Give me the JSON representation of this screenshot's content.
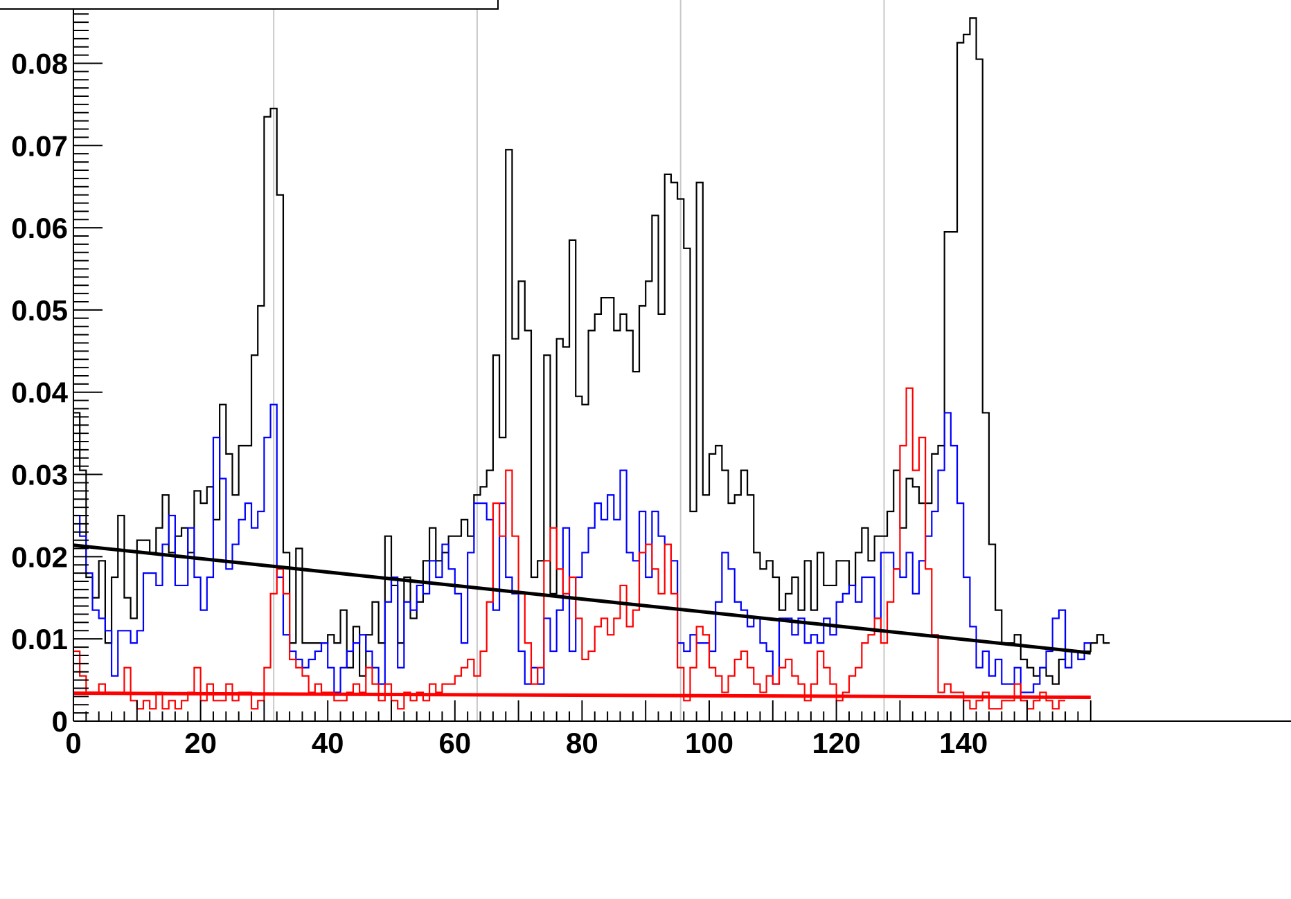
{
  "chart_data": {
    "type": "line",
    "xlim": [
      0,
      160
    ],
    "ylim": [
      0,
      0.0877
    ],
    "grid": {
      "vertical": true,
      "horizontal": false
    },
    "grid_lines_x": [
      31.5,
      63.5,
      95.5,
      127.5
    ],
    "x_ticks": [
      0,
      20,
      40,
      60,
      80,
      100,
      120,
      140
    ],
    "x_tick_labels": [
      "0",
      "20",
      "40",
      "60",
      "80",
      "100",
      "120",
      "140"
    ],
    "y_ticks": [
      0,
      0.01,
      0.02,
      0.03,
      0.04,
      0.05,
      0.06,
      0.07,
      0.08
    ],
    "y_tick_labels": [
      "0",
      "0.01",
      "0.02",
      "0.03",
      "0.04",
      "0.05",
      "0.06",
      "0.07",
      "0.08"
    ],
    "colors": {
      "black": "#000000",
      "blue": "#0000ff",
      "red": "#ff0000",
      "grid": "#c8c8c8"
    },
    "series": [
      {
        "style": "step",
        "color": "#000000",
        "values": [
          0.0375,
          0.0305,
          0.0175,
          0.015,
          0.0195,
          0.0095,
          0.0175,
          0.025,
          0.015,
          0.0125,
          0.022,
          0.022,
          0.0205,
          0.0235,
          0.0275,
          0.0205,
          0.0225,
          0.0235,
          0.0205,
          0.028,
          0.0265,
          0.0285,
          0.0245,
          0.0385,
          0.0325,
          0.0275,
          0.0335,
          0.0335,
          0.0445,
          0.0505,
          0.0735,
          0.0745,
          0.064,
          0.0205,
          0.0095,
          0.021,
          0.0095,
          0.0095,
          0.0095,
          0.0095,
          0.0105,
          0.0095,
          0.0135,
          0.0065,
          0.0115,
          0.0055,
          0.0105,
          0.0145,
          0.0095,
          0.0225,
          0.0165,
          0.0095,
          0.0175,
          0.0125,
          0.0145,
          0.0195,
          0.0235,
          0.0195,
          0.0205,
          0.0225,
          0.0225,
          0.0245,
          0.0225,
          0.0275,
          0.0285,
          0.0305,
          0.0445,
          0.0345,
          0.0695,
          0.0465,
          0.0535,
          0.0475,
          0.0175,
          0.0195,
          0.0445,
          0.0155,
          0.0465,
          0.0455,
          0.0585,
          0.0395,
          0.0385,
          0.0475,
          0.0495,
          0.0515,
          0.0515,
          0.0475,
          0.0495,
          0.0475,
          0.0425,
          0.0505,
          0.0535,
          0.0615,
          0.0495,
          0.0665,
          0.0655,
          0.0635,
          0.0575,
          0.0255,
          0.0655,
          0.0275,
          0.0325,
          0.0335,
          0.0305,
          0.0265,
          0.0275,
          0.0305,
          0.0275,
          0.0205,
          0.0185,
          0.0195,
          0.0175,
          0.0135,
          0.0155,
          0.0175,
          0.0135,
          0.0195,
          0.0135,
          0.0205,
          0.0165,
          0.0165,
          0.0195,
          0.0195,
          0.0165,
          0.0205,
          0.0235,
          0.0195,
          0.0225,
          0.0225,
          0.0255,
          0.0305,
          0.0235,
          0.0295,
          0.0285,
          0.0265,
          0.0265,
          0.0325,
          0.0335,
          0.0595,
          0.0595,
          0.0825,
          0.0835,
          0.0855,
          0.0805,
          0.0375,
          0.0215,
          0.0135,
          0.0095,
          0.0095,
          0.0105,
          0.0075,
          0.0065,
          0.0055,
          0.0065,
          0.0055,
          0.0045,
          0.0075,
          0.0085,
          0.0085,
          0.0075,
          0.0085,
          0.0095,
          0.0105,
          0.0095
        ]
      },
      {
        "style": "step",
        "color": "#0000ff",
        "values": [
          0.025,
          0.0225,
          0.018,
          0.0135,
          0.0125,
          0.011,
          0.0055,
          0.011,
          0.011,
          0.0095,
          0.011,
          0.018,
          0.018,
          0.0165,
          0.0215,
          0.025,
          0.0165,
          0.0165,
          0.0235,
          0.0175,
          0.0135,
          0.0175,
          0.0345,
          0.0295,
          0.0185,
          0.0215,
          0.0245,
          0.0265,
          0.0235,
          0.0255,
          0.0345,
          0.0385,
          0.0175,
          0.0105,
          0.0085,
          0.0075,
          0.0065,
          0.0075,
          0.0085,
          0.0095,
          0.0065,
          0.0035,
          0.0065,
          0.0085,
          0.0095,
          0.0105,
          0.0085,
          0.0065,
          0.0045,
          0.0145,
          0.0175,
          0.0065,
          0.0145,
          0.0135,
          0.0165,
          0.0155,
          0.0195,
          0.0175,
          0.0215,
          0.0185,
          0.0155,
          0.0095,
          0.0205,
          0.0265,
          0.0265,
          0.0245,
          0.0135,
          0.0265,
          0.0175,
          0.0155,
          0.0085,
          0.0045,
          0.0065,
          0.0045,
          0.0125,
          0.0085,
          0.0135,
          0.0235,
          0.0085,
          0.0175,
          0.0205,
          0.0235,
          0.0265,
          0.0245,
          0.0275,
          0.0245,
          0.0305,
          0.0205,
          0.0195,
          0.0255,
          0.0175,
          0.0255,
          0.0225,
          0.0215,
          0.0195,
          0.0095,
          0.0085,
          0.0105,
          0.0095,
          0.0095,
          0.0085,
          0.0145,
          0.0205,
          0.0185,
          0.0145,
          0.0135,
          0.0115,
          0.0125,
          0.0095,
          0.0085,
          0.0045,
          0.0125,
          0.0125,
          0.0105,
          0.0125,
          0.0095,
          0.0105,
          0.0095,
          0.0125,
          0.0105,
          0.0145,
          0.0155,
          0.0165,
          0.0145,
          0.0175,
          0.0175,
          0.0125,
          0.0205,
          0.0205,
          0.0185,
          0.0175,
          0.0205,
          0.0155,
          0.0195,
          0.0225,
          0.0255,
          0.0305,
          0.0375,
          0.0335,
          0.0265,
          0.0175,
          0.0115,
          0.0065,
          0.0085,
          0.0055,
          0.0075,
          0.0045,
          0.0045,
          0.0065,
          0.0035,
          0.0035,
          0.0045,
          0.0065,
          0.0085,
          0.0125,
          0.0135,
          0.0065,
          0.0085,
          0.0075,
          0.0095
        ]
      },
      {
        "style": "step",
        "color": "#ff0000",
        "values": [
          0.0085,
          0.0055,
          0.0035,
          0.0035,
          0.0045,
          0.0035,
          0.0035,
          0.0035,
          0.0065,
          0.0025,
          0.0015,
          0.0025,
          0.0015,
          0.0035,
          0.0015,
          0.0025,
          0.0015,
          0.0025,
          0.0035,
          0.0065,
          0.0025,
          0.0045,
          0.0025,
          0.0025,
          0.0045,
          0.0025,
          0.0035,
          0.0035,
          0.0015,
          0.0025,
          0.0065,
          0.0155,
          0.0185,
          0.0155,
          0.0075,
          0.0065,
          0.0055,
          0.0035,
          0.0045,
          0.0035,
          0.0035,
          0.0025,
          0.0025,
          0.0035,
          0.0045,
          0.0035,
          0.0065,
          0.0045,
          0.0025,
          0.0045,
          0.0025,
          0.0015,
          0.0035,
          0.0025,
          0.0035,
          0.0025,
          0.0045,
          0.0035,
          0.0045,
          0.0045,
          0.0055,
          0.0065,
          0.0075,
          0.0055,
          0.0085,
          0.0145,
          0.0265,
          0.0225,
          0.0305,
          0.0225,
          0.0155,
          0.0095,
          0.0045,
          0.0065,
          0.0195,
          0.0235,
          0.0185,
          0.0155,
          0.0175,
          0.0125,
          0.0075,
          0.0085,
          0.0115,
          0.0125,
          0.0105,
          0.0125,
          0.0165,
          0.0115,
          0.0135,
          0.0205,
          0.0215,
          0.0185,
          0.0155,
          0.0215,
          0.0155,
          0.0065,
          0.0025,
          0.0065,
          0.0115,
          0.0105,
          0.0065,
          0.0055,
          0.0035,
          0.0055,
          0.0075,
          0.0085,
          0.0065,
          0.0045,
          0.0035,
          0.0055,
          0.0045,
          0.0065,
          0.0075,
          0.0055,
          0.0045,
          0.0025,
          0.0045,
          0.0085,
          0.0065,
          0.0045,
          0.0025,
          0.0035,
          0.0055,
          0.0065,
          0.0095,
          0.0105,
          0.0125,
          0.0095,
          0.0145,
          0.0185,
          0.0335,
          0.0405,
          0.0305,
          0.0345,
          0.0185,
          0.0105,
          0.0035,
          0.0045,
          0.0035,
          0.0035,
          0.0025,
          0.0015,
          0.0025,
          0.0035,
          0.0015,
          0.0015,
          0.0025,
          0.0025,
          0.0045,
          0.0025,
          0.0015,
          0.0025,
          0.0035,
          0.0025,
          0.0015,
          0.0025
        ]
      },
      {
        "style": "fit-line",
        "color": "#000000",
        "x": [
          0,
          160
        ],
        "values": [
          0.0214,
          0.0083
        ]
      },
      {
        "style": "fit-line",
        "color": "#ff0000",
        "x": [
          0,
          160
        ],
        "values": [
          0.0034,
          0.0029
        ]
      }
    ]
  }
}
